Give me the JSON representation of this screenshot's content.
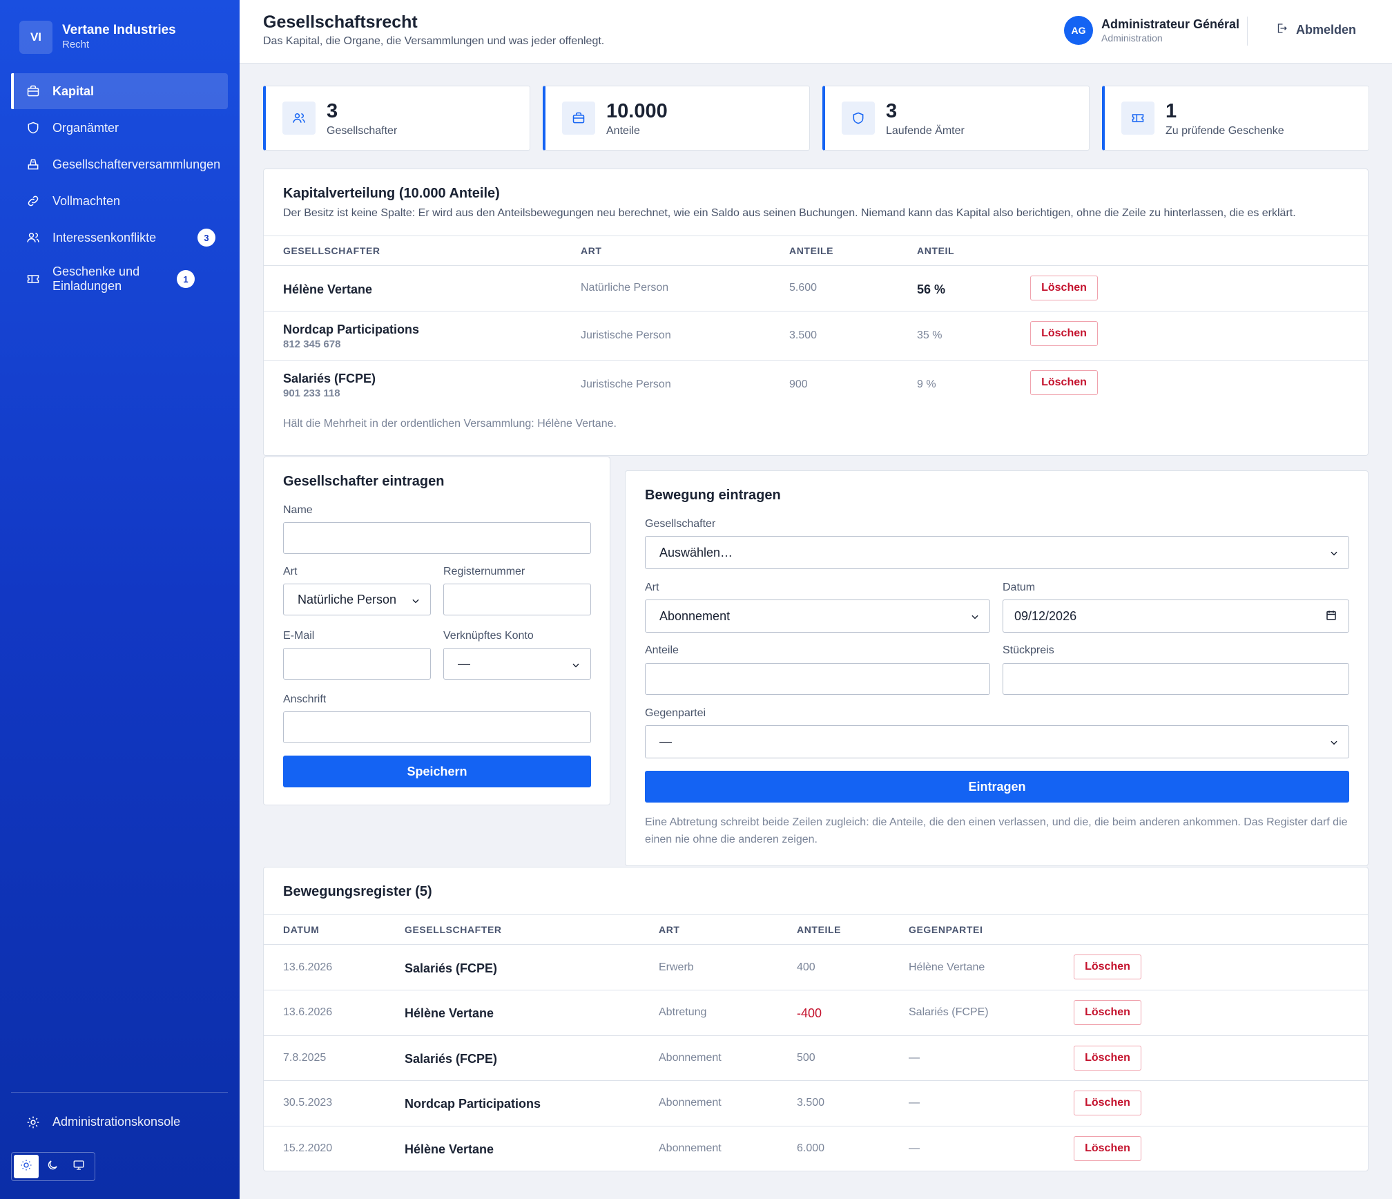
{
  "brand": {
    "initials": "VI",
    "name": "Vertane Industries",
    "subtitle": "Recht"
  },
  "sidebar": {
    "items": [
      {
        "label": "Kapital",
        "icon": "briefcase-icon",
        "active": true
      },
      {
        "label": "Organämter",
        "icon": "shield-icon"
      },
      {
        "label": "Gesellschafterversammlungen",
        "icon": "ballot-box-icon"
      },
      {
        "label": "Vollmachten",
        "icon": "link-icon"
      },
      {
        "label": "Interessenkonflikte",
        "icon": "users-icon",
        "badge": "3"
      },
      {
        "label": "Geschenke und Einladungen",
        "icon": "ticket-icon",
        "badge": "1"
      }
    ],
    "admin_console": "Administrationskonsole",
    "theme_modes": [
      "light",
      "dark",
      "system"
    ]
  },
  "header": {
    "title": "Gesellschaftsrecht",
    "subtitle": "Das Kapital, die Organe, die Versammlungen und was jeder offenlegt.",
    "user_initials": "AG",
    "user_name": "Administrateur Général",
    "user_role": "Administration",
    "logout": "Abmelden"
  },
  "stats": [
    {
      "value": "3",
      "label": "Gesellschafter",
      "icon": "users-icon"
    },
    {
      "value": "10.000",
      "label": "Anteile",
      "icon": "briefcase-icon"
    },
    {
      "value": "3",
      "label": "Laufende Ämter",
      "icon": "shield-icon"
    },
    {
      "value": "1",
      "label": "Zu prüfende Geschenke",
      "icon": "ticket-icon"
    }
  ],
  "capital": {
    "title": "Kapitalverteilung (10.000 Anteile)",
    "description": "Der Besitz ist keine Spalte: Er wird aus den Anteilsbewegungen neu berechnet, wie ein Saldo aus seinen Buchungen. Niemand kann das Kapital also berichtigen, ohne die Zeile zu hinterlassen, die es erklärt.",
    "columns": [
      "GESELLSCHAFTER",
      "ART",
      "ANTEILE",
      "ANTEIL"
    ],
    "rows": [
      {
        "name": "Hélène Vertane",
        "reg": "",
        "type": "Natürliche Person",
        "shares": "5.600",
        "pct": "56 %"
      },
      {
        "name": "Nordcap Participations",
        "reg": "812 345 678",
        "type": "Juristische Person",
        "shares": "3.500",
        "pct": "35 %"
      },
      {
        "name": "Salariés (FCPE)",
        "reg": "901 233 118",
        "type": "Juristische Person",
        "shares": "900",
        "pct": "9 %"
      }
    ],
    "delete_label": "Löschen",
    "majority_note": "Hält die Mehrheit in der ordentlichen Versammlung: Hélène Vertane."
  },
  "shareholder_form": {
    "title": "Gesellschafter eintragen",
    "name_label": "Name",
    "type_label": "Art",
    "type_value": "Natürliche Person",
    "reg_label": "Registernummer",
    "email_label": "E-Mail",
    "account_label": "Verknüpftes Konto",
    "account_value": "—",
    "address_label": "Anschrift",
    "submit": "Speichern"
  },
  "movement_form": {
    "title": "Bewegung eintragen",
    "holder_label": "Gesellschafter",
    "holder_value": "Auswählen…",
    "type_label": "Art",
    "type_value": "Abonnement",
    "date_label": "Datum",
    "date_value": "09/12/2026",
    "shares_label": "Anteile",
    "price_label": "Stückpreis",
    "counterparty_label": "Gegenpartei",
    "counterparty_value": "—",
    "submit": "Eintragen",
    "note": "Eine Abtretung schreibt beide Zeilen zugleich: die Anteile, die den einen verlassen, und die, die beim anderen ankommen. Das Register darf die einen nie ohne die anderen zeigen."
  },
  "register": {
    "title": "Bewegungsregister (5)",
    "columns": [
      "DATUM",
      "GESELLSCHAFTER",
      "ART",
      "ANTEILE",
      "GEGENPARTEI"
    ],
    "rows": [
      {
        "date": "13.6.2026",
        "holder": "Salariés (FCPE)",
        "type": "Erwerb",
        "shares": "400",
        "counterparty": "Hélène Vertane"
      },
      {
        "date": "13.6.2026",
        "holder": "Hélène Vertane",
        "type": "Abtretung",
        "shares": "-400",
        "counterparty": "Salariés (FCPE)"
      },
      {
        "date": "7.8.2025",
        "holder": "Salariés (FCPE)",
        "type": "Abonnement",
        "shares": "500",
        "counterparty": "—"
      },
      {
        "date": "30.5.2023",
        "holder": "Nordcap Participations",
        "type": "Abonnement",
        "shares": "3.500",
        "counterparty": "—"
      },
      {
        "date": "15.2.2020",
        "holder": "Hélène Vertane",
        "type": "Abonnement",
        "shares": "6.000",
        "counterparty": "—"
      }
    ],
    "delete_label": "Löschen"
  },
  "colors": {
    "accent": "#1463f3",
    "danger": "#c4122d",
    "sidebar": "#1238c4"
  }
}
